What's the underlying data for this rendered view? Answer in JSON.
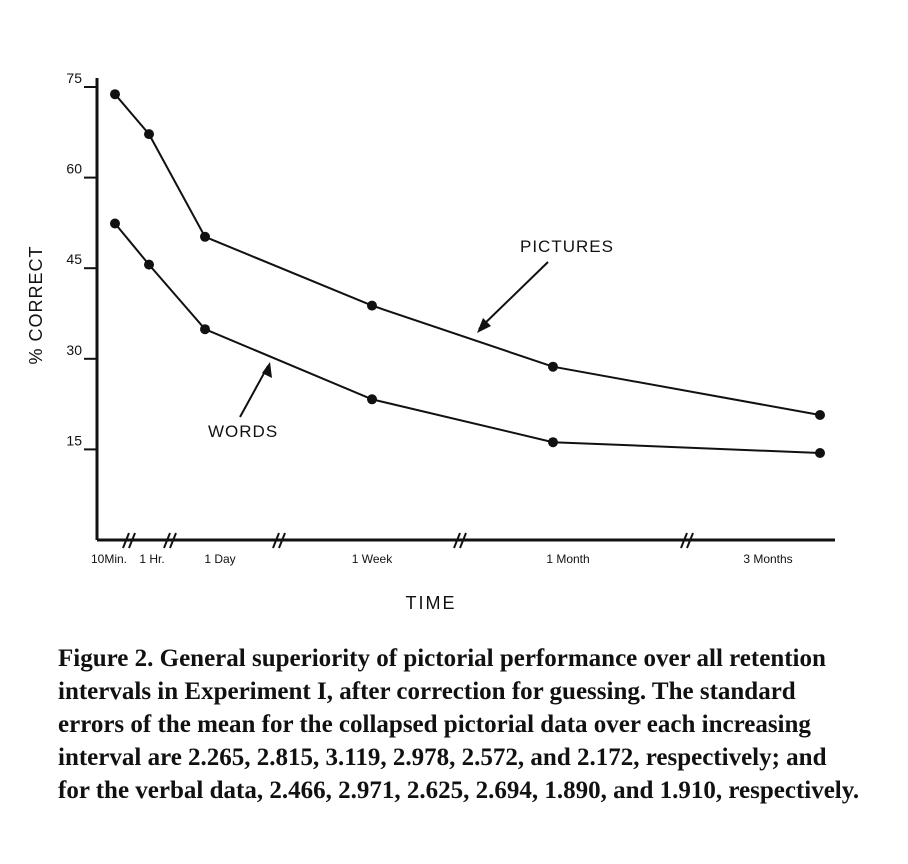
{
  "chart_data": {
    "type": "line",
    "x_categories": [
      "10Min.",
      "1 Hr.",
      "1 Day",
      "1 Week",
      "1 Month",
      "3 Months"
    ],
    "xlabel": "TIME",
    "ylabel": "% CORRECT",
    "y_ticks": [
      15,
      30,
      45,
      60,
      75
    ],
    "ylim": [
      0,
      77
    ],
    "grid": false,
    "series": [
      {
        "name": "PICTURES",
        "values": [
          73.8,
          67.2,
          50.2,
          38.8,
          28.7,
          20.7
        ]
      },
      {
        "name": "WORDS",
        "values": [
          52.4,
          45.6,
          34.9,
          23.3,
          16.2,
          14.4
        ]
      }
    ]
  },
  "caption": {
    "label": "Figure 2.",
    "text": "General superiority of pictorial performance over all retention intervals in Experiment I, after correction for guessing. The standard errors of the mean for the collapsed pictorial data over each increasing interval are 2.265, 2.815, 3.119, 2.978, 2.572, and 2.172, respectively; and for the verbal data, 2.466, 2.971, 2.625, 2.694, 1.890, and 1.910, respectively."
  }
}
